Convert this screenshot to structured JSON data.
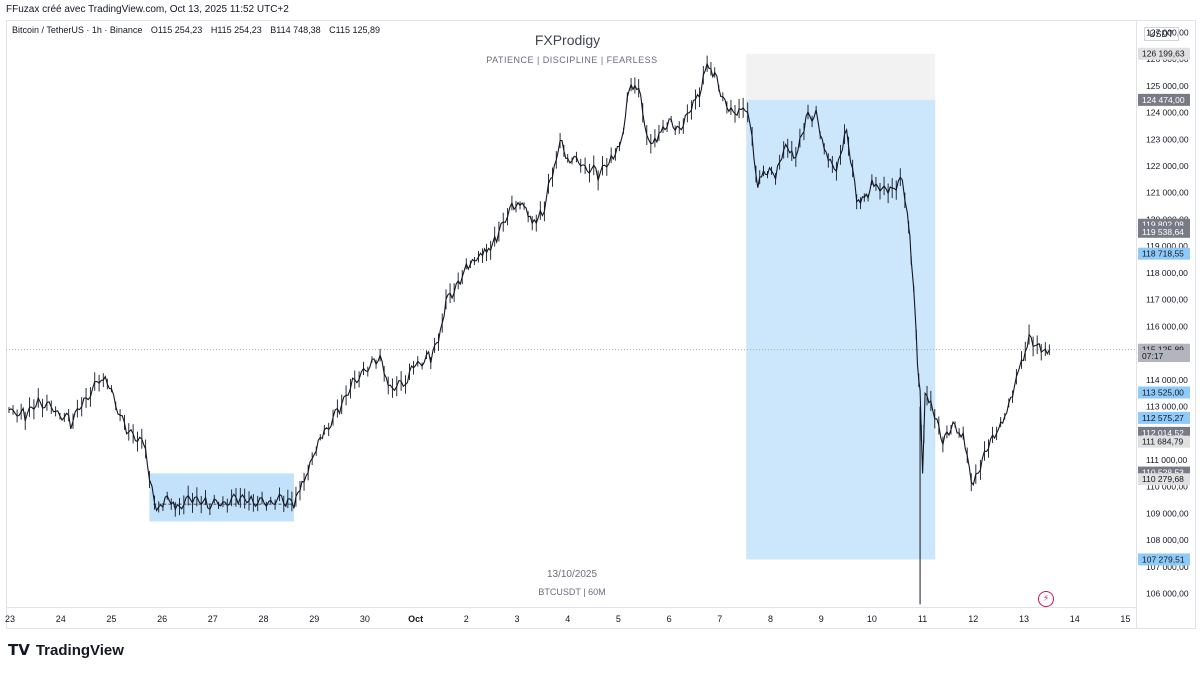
{
  "header": {
    "author_line": "FFuzax créé avec TradingView.com, Oct 13, 2025 11:52 UTC+2"
  },
  "symbol": {
    "name": "Bitcoin / TetherUS · 1h · Binance",
    "open": "O115 254,23",
    "high": "H115 254,23",
    "low": "B114 748,38",
    "close": "C115 125,89"
  },
  "watermark": {
    "title": "FXProdigy",
    "subtitle": "PATIENCE  |  DISCIPLINE  |  FEARLESS",
    "date": "13/10/2025",
    "pair": "BTCUSDT | 60M"
  },
  "axis": {
    "currency": "USDT"
  },
  "footer": {
    "brand": "TradingView",
    "logo_icon": "tradingview-logo-icon"
  },
  "colors": {
    "candle": "#131722",
    "zone_blue": "#bbdefb",
    "zone_grey": "#eeeeef",
    "label_blue": "#90caf9",
    "label_grey": "#6a6d78",
    "accent_pink": "#c2185b"
  },
  "chart_data": {
    "type": "line",
    "title": "",
    "xlabel": "",
    "ylabel": "",
    "x_unit": "day (Sep 23 – Oct 15, 2025)",
    "ylim": [
      105500,
      127200
    ],
    "xlim": [
      "2025-09-23",
      "2025-10-15"
    ],
    "grid": false,
    "y_ticks": [
      "106 000,00",
      "107 000,00",
      "108 000,00",
      "109 000,00",
      "110 000,00",
      "111 000,00",
      "112 000,00",
      "113 000,00",
      "114 000,00",
      "115 000,00",
      "116 000,00",
      "117 000,00",
      "118 000,00",
      "119 000,00",
      "120 000,00",
      "121 000,00",
      "122 000,00",
      "123 000,00",
      "124 000,00",
      "125 000,00",
      "126 000,00",
      "127 000,00"
    ],
    "x_ticks": [
      {
        "label": "23",
        "day": 23
      },
      {
        "label": "24",
        "day": 24
      },
      {
        "label": "25",
        "day": 25
      },
      {
        "label": "26",
        "day": 26
      },
      {
        "label": "27",
        "day": 27
      },
      {
        "label": "28",
        "day": 28
      },
      {
        "label": "29",
        "day": 29
      },
      {
        "label": "30",
        "day": 30
      },
      {
        "label": "Oct",
        "day": 31
      },
      {
        "label": "2",
        "day": 32
      },
      {
        "label": "3",
        "day": 33
      },
      {
        "label": "4",
        "day": 34
      },
      {
        "label": "5",
        "day": 35
      },
      {
        "label": "6",
        "day": 36
      },
      {
        "label": "7",
        "day": 37
      },
      {
        "label": "8",
        "day": 38
      },
      {
        "label": "9",
        "day": 39
      },
      {
        "label": "10",
        "day": 40
      },
      {
        "label": "11",
        "day": 41
      },
      {
        "label": "12",
        "day": 42
      },
      {
        "label": "13",
        "day": 43
      },
      {
        "label": "14",
        "day": 44
      },
      {
        "label": "15",
        "day": 45
      }
    ],
    "series": [
      {
        "name": "BTCUSDT 1h",
        "x": [
          22.98,
          23.3,
          23.6,
          23.9,
          24.2,
          24.5,
          24.8,
          25.0,
          25.3,
          25.6,
          25.75,
          25.85,
          26.1,
          26.3,
          26.6,
          26.9,
          27.2,
          27.5,
          27.8,
          28.1,
          28.4,
          28.6,
          28.8,
          29.0,
          29.2,
          29.5,
          29.8,
          30.1,
          30.3,
          30.5,
          30.8,
          31.0,
          31.3,
          31.45,
          31.6,
          31.8,
          32.0,
          32.2,
          32.4,
          32.6,
          32.9,
          33.1,
          33.3,
          33.5,
          33.7,
          33.85,
          34.0,
          34.3,
          34.6,
          34.9,
          35.1,
          35.25,
          35.4,
          35.6,
          35.8,
          36.0,
          36.2,
          36.4,
          36.6,
          36.75,
          36.9,
          37.1,
          37.3,
          37.5,
          37.6,
          37.75,
          37.9,
          38.1,
          38.3,
          38.5,
          38.7,
          38.9,
          39.1,
          39.3,
          39.5,
          39.7,
          39.85,
          40.0,
          40.2,
          40.4,
          40.6,
          40.7,
          40.75,
          40.8,
          40.85,
          40.9,
          40.95,
          41.0,
          41.05,
          41.2,
          41.4,
          41.6,
          41.8,
          42.0,
          42.1,
          42.3,
          42.5,
          42.7,
          42.85,
          42.95,
          43.1,
          43.3,
          43.5
        ],
        "y": [
          113000,
          112700,
          113200,
          112800,
          112400,
          113300,
          114000,
          113600,
          112200,
          111800,
          110500,
          109300,
          109400,
          109200,
          109500,
          109300,
          109300,
          109500,
          109400,
          109300,
          109500,
          109400,
          110100,
          111100,
          112100,
          113000,
          114100,
          114500,
          114700,
          113600,
          113800,
          114600,
          114900,
          115500,
          117000,
          117500,
          118300,
          118700,
          118900,
          119200,
          120500,
          120800,
          120000,
          120200,
          121800,
          122900,
          122400,
          122000,
          121700,
          122300,
          123400,
          125200,
          124800,
          122700,
          123200,
          123800,
          123400,
          124200,
          124800,
          125800,
          125500,
          124400,
          124100,
          124300,
          123400,
          121300,
          121800,
          121600,
          122600,
          122200,
          123800,
          123900,
          122500,
          122000,
          123400,
          120800,
          120700,
          121400,
          121300,
          121200,
          121600,
          120000,
          119300,
          118200,
          116600,
          114400,
          113600,
          110500,
          113600,
          112800,
          111600,
          112200,
          111800,
          110100,
          110500,
          111500,
          112000,
          112900,
          114100,
          114600,
          115600,
          115300,
          115125.89
        ]
      }
    ],
    "zones": [
      {
        "kind": "consolidation",
        "x": [
          25.75,
          28.6
        ],
        "y": [
          108700,
          110500
        ]
      },
      {
        "kind": "long-target",
        "x": [
          37.52,
          41.25
        ],
        "y": [
          124474,
          126199.63
        ]
      },
      {
        "kind": "long-entry",
        "x": [
          37.52,
          41.25
        ],
        "y": [
          107279.51,
          124474
        ]
      }
    ],
    "price_labels": [
      {
        "text": "126 199,63",
        "value": 126199.63,
        "style": "grey"
      },
      {
        "text": "124 474,00",
        "value": 124474,
        "style": "dark"
      },
      {
        "text": "119 802,08",
        "value": 119802.08,
        "style": "dark"
      },
      {
        "text": "119 538,64",
        "value": 119538.64,
        "style": "dark"
      },
      {
        "text": "118 718,55",
        "value": 118718.55,
        "style": "blue"
      },
      {
        "text": "115 125,89",
        "value": 115125.89,
        "style": "current"
      },
      {
        "text": "07:17",
        "value": 114890,
        "style": "current"
      },
      {
        "text": "113 525,00",
        "value": 113525,
        "style": "blue"
      },
      {
        "text": "112 575,27",
        "value": 112575.27,
        "style": "blue"
      },
      {
        "text": "112 014,52",
        "value": 112014.52,
        "style": "dark"
      },
      {
        "text": "111 684,79",
        "value": 111684.79,
        "style": "grey"
      },
      {
        "text": "110 528,53",
        "value": 110528.53,
        "style": "dark"
      },
      {
        "text": "110 279,68",
        "value": 110279.68,
        "style": "grey"
      },
      {
        "text": "107 279,51",
        "value": 107279.51,
        "style": "blue"
      }
    ],
    "wick_low": {
      "x": 40.95,
      "y": 105600
    }
  }
}
